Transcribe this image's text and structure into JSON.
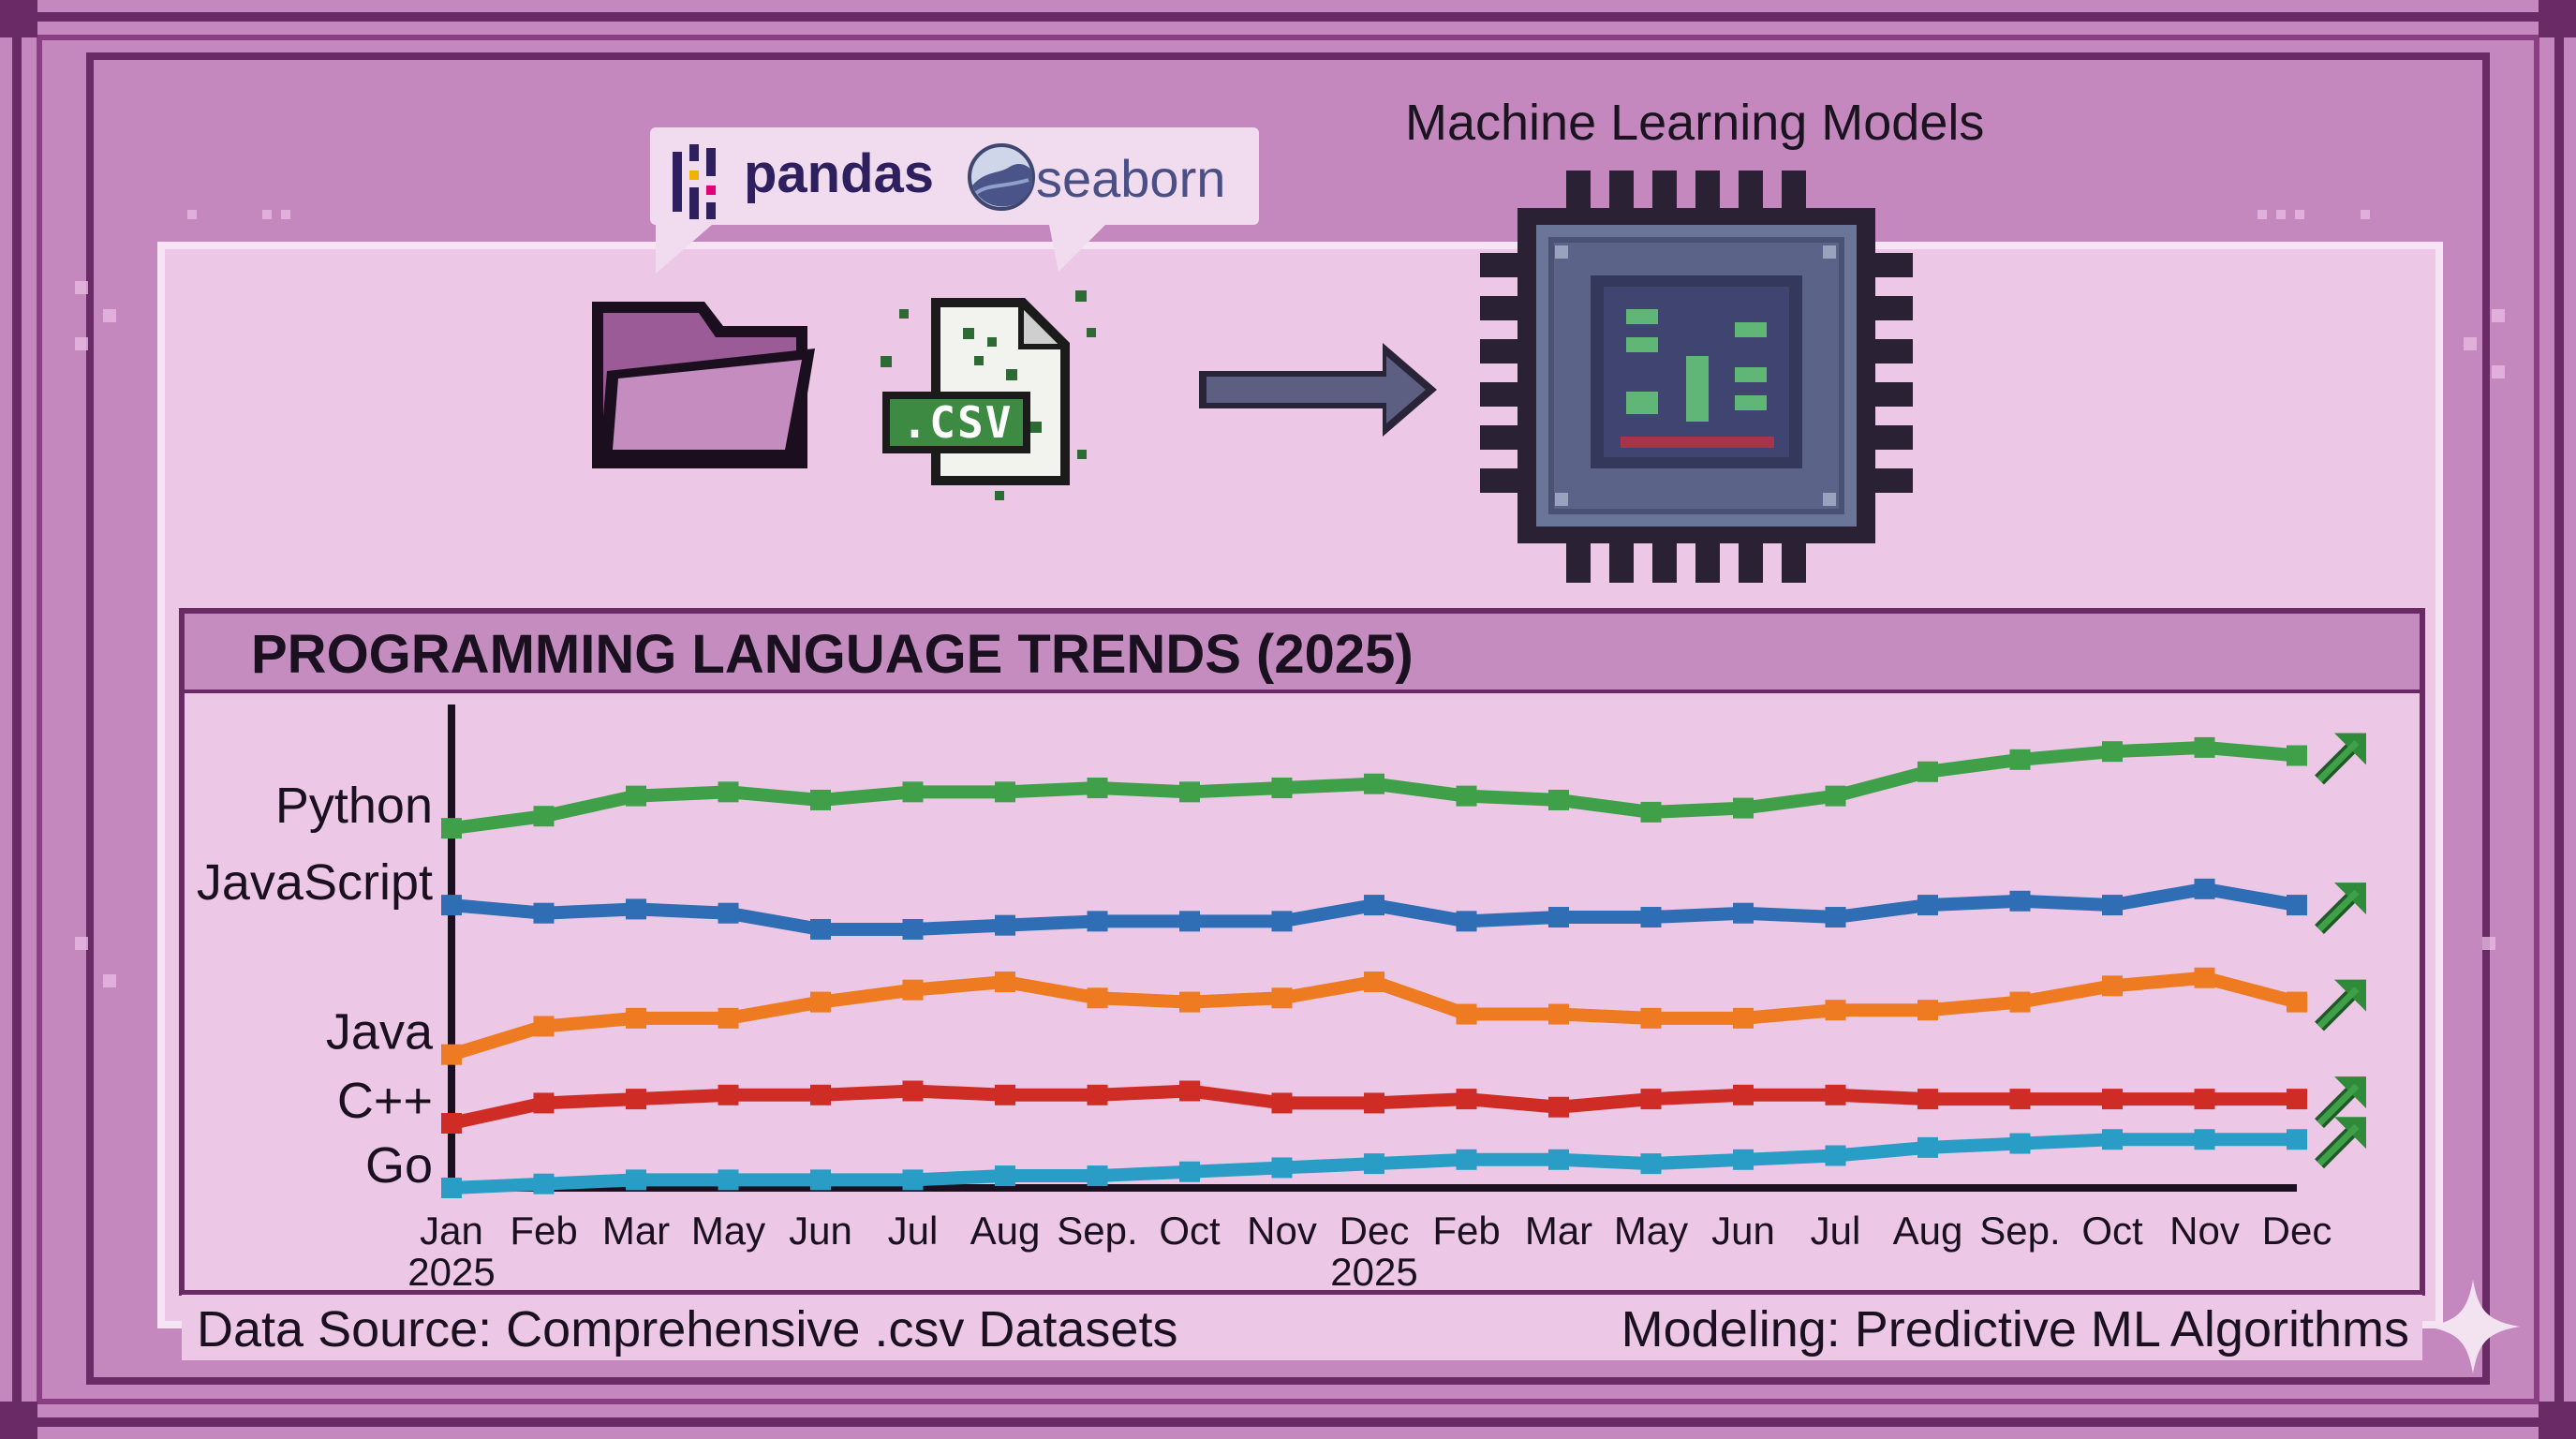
{
  "libraries": {
    "pandas": "pandas",
    "seaborn": "seaborn"
  },
  "file_badge": ".CSV",
  "models_title": "Machine Learning Models",
  "footer": {
    "source": "Data Source: Comprehensive .csv Datasets",
    "modeling": "Modeling: Predictive ML Algorithms"
  },
  "colors": {
    "background": "#c488be",
    "panel": "#ecc8e6",
    "header_band": "#c58cc0",
    "frame_dark": "#6a2a66"
  },
  "chart_data": {
    "type": "line",
    "title": "PROGRAMMING LANGUAGE TRENDS (2025)",
    "x": [
      "Jan\n2025",
      "Feb",
      "Mar",
      "May",
      "Jun",
      "Jul",
      "Aug",
      "Sep.",
      "Oct",
      "Nov",
      "Dec\n2025",
      "Feb",
      "Mar",
      "May",
      "Jun",
      "Jul",
      "Aug",
      "Sep.",
      "Oct",
      "Nov",
      "Dec"
    ],
    "series": [
      {
        "name": "Python",
        "color": "#3fa049",
        "trend": "up",
        "values": [
          89,
          92,
          97,
          98,
          96,
          98,
          98,
          99,
          98,
          99,
          100,
          97,
          96,
          93,
          94,
          97,
          103,
          106,
          108,
          109,
          107
        ]
      },
      {
        "name": "JavaScript",
        "color": "#2f6db5",
        "trend": "up",
        "values": [
          70,
          68,
          69,
          68,
          64,
          64,
          65,
          66,
          66,
          66,
          70,
          66,
          67,
          67,
          68,
          67,
          70,
          71,
          70,
          74,
          70
        ]
      },
      {
        "name": "Java",
        "color": "#ee7a22",
        "trend": "up",
        "values": [
          33,
          40,
          42,
          42,
          46,
          49,
          51,
          47,
          46,
          47,
          51,
          43,
          43,
          42,
          42,
          44,
          44,
          46,
          50,
          52,
          46
        ]
      },
      {
        "name": "C++",
        "color": "#cf2c25",
        "trend": "up",
        "values": [
          16,
          21,
          22,
          23,
          23,
          24,
          23,
          23,
          24,
          21,
          21,
          22,
          20,
          22,
          23,
          23,
          22,
          22,
          22,
          22,
          22
        ]
      },
      {
        "name": "Go",
        "color": "#2a9dc7",
        "trend": "up",
        "values": [
          0,
          1,
          2,
          2,
          2,
          2,
          3,
          3,
          4,
          5,
          6,
          7,
          7,
          6,
          7,
          8,
          10,
          11,
          12,
          12,
          12
        ]
      }
    ],
    "ylabel": "",
    "xlabel": "",
    "ylim": [
      0,
      115
    ],
    "grid": false,
    "legend": "labels-left"
  }
}
